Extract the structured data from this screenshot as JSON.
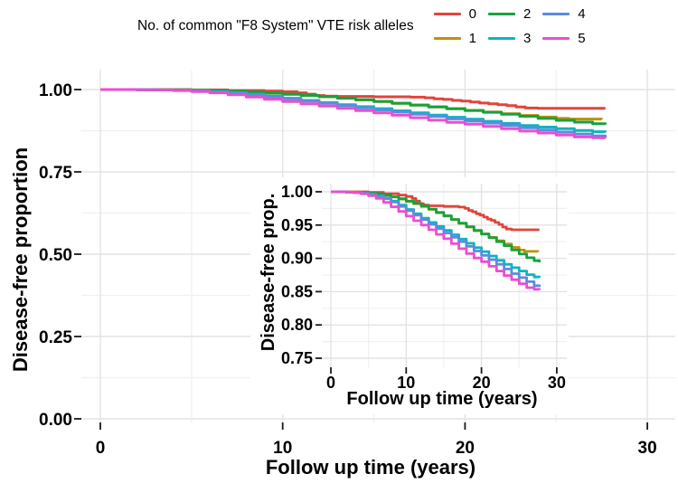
{
  "legend": {
    "title": "No. of common \"F8 System\" VTE risk alleles"
  },
  "chart_data": {
    "type": "line",
    "subtype": "kaplan_meier_step",
    "description": "Disease-free survival curves by number of common F8 System VTE risk alleles (0-5), with inset magnifying the 0.75-1.00 range",
    "main_axes": {
      "xlabel": "Follow up time (years)",
      "ylabel": "Disease-free proportion",
      "xlim": [
        -1,
        31.5
      ],
      "ylim": [
        -0.01,
        1.06
      ],
      "grid": true,
      "legend_position": "top-right",
      "xticks": [
        {
          "v": 0,
          "label": "0"
        },
        {
          "v": 10,
          "label": "10"
        },
        {
          "v": 20,
          "label": "20"
        },
        {
          "v": 30,
          "label": "30"
        }
      ],
      "yticks": [
        {
          "v": 1,
          "label": "1.00"
        },
        {
          "v": 0.75,
          "label": "0.75"
        },
        {
          "v": 0.5,
          "label": "0.50"
        },
        {
          "v": 0.25,
          "label": "0.25"
        },
        {
          "v": 0,
          "label": "0.00"
        }
      ]
    },
    "inset_axes": {
      "xlabel": "Follow up time (years)",
      "ylabel": "Disease-free prop.",
      "xlim": [
        -1.2,
        31.3
      ],
      "ylim": [
        0.735,
        1.012
      ],
      "grid": true,
      "xticks": [
        {
          "v": 0,
          "label": "0"
        },
        {
          "v": 10,
          "label": "10"
        },
        {
          "v": 20,
          "label": "20"
        },
        {
          "v": 30,
          "label": "30"
        }
      ],
      "yticks": [
        {
          "v": 1,
          "label": "1.00"
        },
        {
          "v": 0.95,
          "label": "0.95"
        },
        {
          "v": 0.9,
          "label": "0.90"
        },
        {
          "v": 0.85,
          "label": "0.85"
        },
        {
          "v": 0.8,
          "label": "0.80"
        },
        {
          "v": 0.75,
          "label": "0.75"
        }
      ]
    },
    "series": [
      {
        "name": "0",
        "color": "#e2443b",
        "points": [
          [
            0,
            1
          ],
          [
            3,
            1
          ],
          [
            5,
            0.999
          ],
          [
            7,
            0.997
          ],
          [
            9,
            0.995
          ],
          [
            10,
            0.993
          ],
          [
            10.8,
            0.99
          ],
          [
            11.3,
            0.986
          ],
          [
            11.8,
            0.982
          ],
          [
            12.3,
            0.98
          ],
          [
            13,
            0.979
          ],
          [
            15,
            0.978
          ],
          [
            17,
            0.977
          ],
          [
            17.8,
            0.975
          ],
          [
            18.3,
            0.972
          ],
          [
            18.8,
            0.97
          ],
          [
            19.3,
            0.967
          ],
          [
            19.8,
            0.965
          ],
          [
            20.3,
            0.962
          ],
          [
            20.8,
            0.959
          ],
          [
            21.3,
            0.957
          ],
          [
            21.8,
            0.954
          ],
          [
            22.3,
            0.951
          ],
          [
            22.8,
            0.947
          ],
          [
            23.3,
            0.944
          ],
          [
            24,
            0.943
          ],
          [
            27.7,
            0.943
          ]
        ]
      },
      {
        "name": "1",
        "color": "#bf9007",
        "points": [
          [
            0,
            1
          ],
          [
            2,
            0.9995
          ],
          [
            4,
            0.999
          ],
          [
            5,
            0.998
          ],
          [
            6,
            0.9965
          ],
          [
            7,
            0.9945
          ],
          [
            8,
            0.992
          ],
          [
            9,
            0.989
          ],
          [
            10,
            0.9855
          ],
          [
            11,
            0.982
          ],
          [
            12,
            0.978
          ],
          [
            13,
            0.9735
          ],
          [
            14,
            0.9685
          ],
          [
            15,
            0.9635
          ],
          [
            16,
            0.958
          ],
          [
            17,
            0.9525
          ],
          [
            18,
            0.947
          ],
          [
            19,
            0.9415
          ],
          [
            20,
            0.9365
          ],
          [
            21,
            0.9315
          ],
          [
            22,
            0.9265
          ],
          [
            23,
            0.9215
          ],
          [
            24,
            0.9165
          ],
          [
            25,
            0.9125
          ],
          [
            25.7,
            0.9105
          ],
          [
            27.5,
            0.91
          ]
        ]
      },
      {
        "name": "2",
        "color": "#16a23c",
        "points": [
          [
            0,
            1
          ],
          [
            2,
            0.9995
          ],
          [
            4,
            0.999
          ],
          [
            5,
            0.998
          ],
          [
            6,
            0.997
          ],
          [
            7,
            0.995
          ],
          [
            8,
            0.9925
          ],
          [
            9,
            0.9895
          ],
          [
            10,
            0.986
          ],
          [
            11,
            0.9825
          ],
          [
            12,
            0.9785
          ],
          [
            13,
            0.974
          ],
          [
            14,
            0.969
          ],
          [
            15,
            0.964
          ],
          [
            16,
            0.9585
          ],
          [
            17,
            0.953
          ],
          [
            18,
            0.9475
          ],
          [
            19,
            0.942
          ],
          [
            20,
            0.9365
          ],
          [
            21,
            0.931
          ],
          [
            22,
            0.925
          ],
          [
            23,
            0.919
          ],
          [
            24,
            0.9125
          ],
          [
            25,
            0.9065
          ],
          [
            26,
            0.901
          ],
          [
            27,
            0.8965
          ],
          [
            27.7,
            0.894
          ]
        ]
      },
      {
        "name": "3",
        "color": "#0db5bc",
        "points": [
          [
            0,
            1
          ],
          [
            2,
            0.9995
          ],
          [
            3,
            0.999
          ],
          [
            4,
            0.998
          ],
          [
            5,
            0.9965
          ],
          [
            6,
            0.994
          ],
          [
            7,
            0.9905
          ],
          [
            8,
            0.986
          ],
          [
            9,
            0.98
          ],
          [
            10,
            0.9735
          ],
          [
            11,
            0.967
          ],
          [
            12,
            0.9605
          ],
          [
            13,
            0.954
          ],
          [
            14,
            0.948
          ],
          [
            15,
            0.942
          ],
          [
            16,
            0.9355
          ],
          [
            17,
            0.929
          ],
          [
            18,
            0.9225
          ],
          [
            19,
            0.916
          ],
          [
            20,
            0.91
          ],
          [
            21,
            0.9035
          ],
          [
            22,
            0.897
          ],
          [
            23,
            0.891
          ],
          [
            24,
            0.886
          ],
          [
            25,
            0.881
          ],
          [
            26,
            0.8755
          ],
          [
            27,
            0.872
          ],
          [
            27.7,
            0.871
          ]
        ]
      },
      {
        "name": "4",
        "color": "#5b8ce0",
        "points": [
          [
            0,
            1
          ],
          [
            2,
            0.9995
          ],
          [
            3,
            0.999
          ],
          [
            4,
            0.9975
          ],
          [
            5,
            0.996
          ],
          [
            6,
            0.993
          ],
          [
            7,
            0.9895
          ],
          [
            8,
            0.9845
          ],
          [
            9,
            0.978
          ],
          [
            10,
            0.9715
          ],
          [
            11,
            0.965
          ],
          [
            12,
            0.958
          ],
          [
            13,
            0.951
          ],
          [
            14,
            0.9445
          ],
          [
            15,
            0.938
          ],
          [
            16,
            0.9315
          ],
          [
            17,
            0.925
          ],
          [
            18,
            0.918
          ],
          [
            19,
            0.911
          ],
          [
            20,
            0.9045
          ],
          [
            21,
            0.898
          ],
          [
            22,
            0.891
          ],
          [
            23,
            0.884
          ],
          [
            24,
            0.877
          ],
          [
            25,
            0.871
          ],
          [
            26,
            0.865
          ],
          [
            27,
            0.859
          ],
          [
            27.7,
            0.857
          ]
        ]
      },
      {
        "name": "5",
        "color": "#ea4ed1",
        "points": [
          [
            0,
            1
          ],
          [
            1,
            1
          ],
          [
            2,
            0.9995
          ],
          [
            3,
            0.9985
          ],
          [
            4,
            0.997
          ],
          [
            5,
            0.994
          ],
          [
            6,
            0.99
          ],
          [
            7,
            0.984
          ],
          [
            8,
            0.9775
          ],
          [
            9,
            0.9705
          ],
          [
            10,
            0.9635
          ],
          [
            11,
            0.9565
          ],
          [
            12,
            0.95
          ],
          [
            13,
            0.943
          ],
          [
            14,
            0.936
          ],
          [
            15,
            0.9295
          ],
          [
            16,
            0.922
          ],
          [
            17,
            0.9145
          ],
          [
            18,
            0.907
          ],
          [
            19,
            0.9005
          ],
          [
            20,
            0.895
          ],
          [
            21,
            0.888
          ],
          [
            22,
            0.881
          ],
          [
            23,
            0.874
          ],
          [
            24,
            0.868
          ],
          [
            25,
            0.862
          ],
          [
            26,
            0.856
          ],
          [
            27,
            0.8535
          ],
          [
            27.7,
            0.8525
          ]
        ]
      }
    ]
  }
}
